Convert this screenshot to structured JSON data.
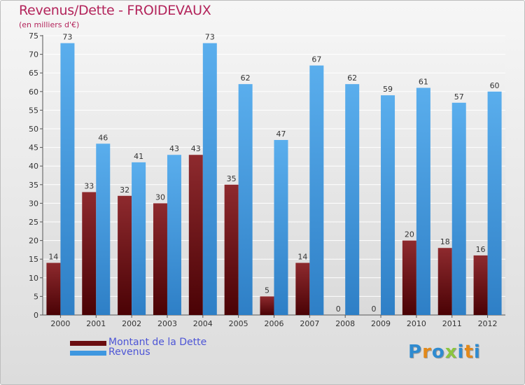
{
  "title": "Revenus/Dette - FROIDEVAUX",
  "subtitle": "(en milliers d'€)",
  "colors": {
    "title": "#b3245b",
    "dette": "#6b0d10",
    "revenus": "#3e97e0",
    "legend_text": "#4d55d6"
  },
  "legend": [
    {
      "label": "Montant de la Dette",
      "color": "#6b0d10"
    },
    {
      "label": "Revenus",
      "color": "#3e97e0"
    }
  ],
  "logo": {
    "text": "Proxiti",
    "letters": [
      {
        "ch": "P",
        "color": "#2f8bd0"
      },
      {
        "ch": "r",
        "color": "#e3891a"
      },
      {
        "ch": "o",
        "color": "#2f8bd0"
      },
      {
        "ch": "x",
        "color": "#8cc53f"
      },
      {
        "ch": "i",
        "color": "#2f8bd0"
      },
      {
        "ch": "t",
        "color": "#e3891a"
      },
      {
        "ch": "i",
        "color": "#2f8bd0"
      }
    ]
  },
  "chart_data": {
    "type": "bar",
    "title": "Revenus/Dette - FROIDEVAUX",
    "subtitle": "(en milliers d'€)",
    "categories": [
      "2000",
      "2001",
      "2002",
      "2003",
      "2004",
      "2005",
      "2006",
      "2007",
      "2008",
      "2009",
      "2010",
      "2011",
      "2012"
    ],
    "series": [
      {
        "name": "Montant de la Dette",
        "values": [
          14,
          33,
          32,
          30,
          43,
          35,
          5,
          14,
          0,
          0,
          20,
          18,
          16
        ]
      },
      {
        "name": "Revenus",
        "values": [
          73,
          46,
          41,
          43,
          73,
          62,
          47,
          67,
          62,
          59,
          61,
          57,
          60
        ]
      }
    ],
    "ylim": [
      0,
      75
    ],
    "yticks": [
      0,
      5,
      10,
      15,
      20,
      25,
      30,
      35,
      40,
      45,
      50,
      55,
      60,
      65,
      70,
      75
    ],
    "grid": true,
    "legend_position": "bottom-left"
  }
}
